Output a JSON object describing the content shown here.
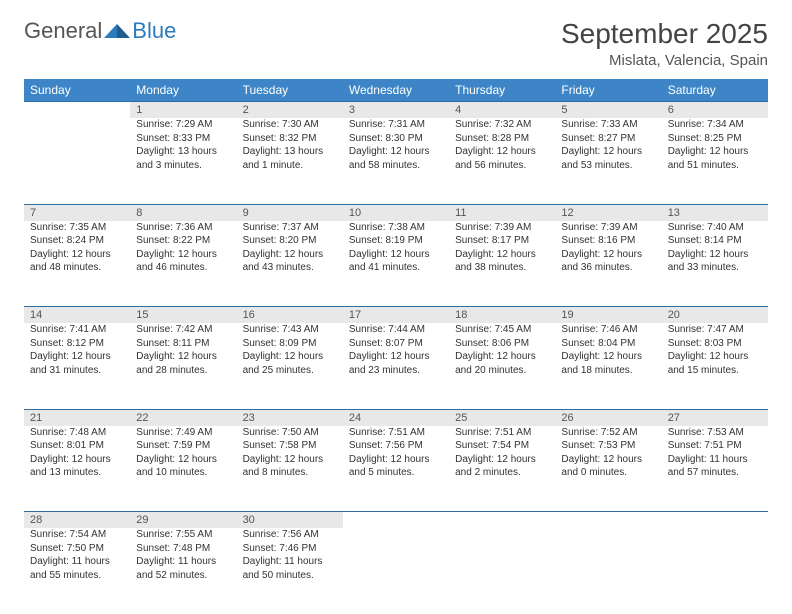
{
  "logo": {
    "text1": "General",
    "text2": "Blue"
  },
  "title": "September 2025",
  "location": "Mislata, Valencia, Spain",
  "colors": {
    "headerBar": "#3d85c6",
    "dayStrip": "#e8e8e8",
    "rule": "#2e6da4"
  },
  "daysOfWeek": [
    "Sunday",
    "Monday",
    "Tuesday",
    "Wednesday",
    "Thursday",
    "Friday",
    "Saturday"
  ],
  "weeks": [
    [
      null,
      {
        "n": "1",
        "sr": "Sunrise: 7:29 AM",
        "ss": "Sunset: 8:33 PM",
        "d1": "Daylight: 13 hours",
        "d2": "and 3 minutes."
      },
      {
        "n": "2",
        "sr": "Sunrise: 7:30 AM",
        "ss": "Sunset: 8:32 PM",
        "d1": "Daylight: 13 hours",
        "d2": "and 1 minute."
      },
      {
        "n": "3",
        "sr": "Sunrise: 7:31 AM",
        "ss": "Sunset: 8:30 PM",
        "d1": "Daylight: 12 hours",
        "d2": "and 58 minutes."
      },
      {
        "n": "4",
        "sr": "Sunrise: 7:32 AM",
        "ss": "Sunset: 8:28 PM",
        "d1": "Daylight: 12 hours",
        "d2": "and 56 minutes."
      },
      {
        "n": "5",
        "sr": "Sunrise: 7:33 AM",
        "ss": "Sunset: 8:27 PM",
        "d1": "Daylight: 12 hours",
        "d2": "and 53 minutes."
      },
      {
        "n": "6",
        "sr": "Sunrise: 7:34 AM",
        "ss": "Sunset: 8:25 PM",
        "d1": "Daylight: 12 hours",
        "d2": "and 51 minutes."
      }
    ],
    [
      {
        "n": "7",
        "sr": "Sunrise: 7:35 AM",
        "ss": "Sunset: 8:24 PM",
        "d1": "Daylight: 12 hours",
        "d2": "and 48 minutes."
      },
      {
        "n": "8",
        "sr": "Sunrise: 7:36 AM",
        "ss": "Sunset: 8:22 PM",
        "d1": "Daylight: 12 hours",
        "d2": "and 46 minutes."
      },
      {
        "n": "9",
        "sr": "Sunrise: 7:37 AM",
        "ss": "Sunset: 8:20 PM",
        "d1": "Daylight: 12 hours",
        "d2": "and 43 minutes."
      },
      {
        "n": "10",
        "sr": "Sunrise: 7:38 AM",
        "ss": "Sunset: 8:19 PM",
        "d1": "Daylight: 12 hours",
        "d2": "and 41 minutes."
      },
      {
        "n": "11",
        "sr": "Sunrise: 7:39 AM",
        "ss": "Sunset: 8:17 PM",
        "d1": "Daylight: 12 hours",
        "d2": "and 38 minutes."
      },
      {
        "n": "12",
        "sr": "Sunrise: 7:39 AM",
        "ss": "Sunset: 8:16 PM",
        "d1": "Daylight: 12 hours",
        "d2": "and 36 minutes."
      },
      {
        "n": "13",
        "sr": "Sunrise: 7:40 AM",
        "ss": "Sunset: 8:14 PM",
        "d1": "Daylight: 12 hours",
        "d2": "and 33 minutes."
      }
    ],
    [
      {
        "n": "14",
        "sr": "Sunrise: 7:41 AM",
        "ss": "Sunset: 8:12 PM",
        "d1": "Daylight: 12 hours",
        "d2": "and 31 minutes."
      },
      {
        "n": "15",
        "sr": "Sunrise: 7:42 AM",
        "ss": "Sunset: 8:11 PM",
        "d1": "Daylight: 12 hours",
        "d2": "and 28 minutes."
      },
      {
        "n": "16",
        "sr": "Sunrise: 7:43 AM",
        "ss": "Sunset: 8:09 PM",
        "d1": "Daylight: 12 hours",
        "d2": "and 25 minutes."
      },
      {
        "n": "17",
        "sr": "Sunrise: 7:44 AM",
        "ss": "Sunset: 8:07 PM",
        "d1": "Daylight: 12 hours",
        "d2": "and 23 minutes."
      },
      {
        "n": "18",
        "sr": "Sunrise: 7:45 AM",
        "ss": "Sunset: 8:06 PM",
        "d1": "Daylight: 12 hours",
        "d2": "and 20 minutes."
      },
      {
        "n": "19",
        "sr": "Sunrise: 7:46 AM",
        "ss": "Sunset: 8:04 PM",
        "d1": "Daylight: 12 hours",
        "d2": "and 18 minutes."
      },
      {
        "n": "20",
        "sr": "Sunrise: 7:47 AM",
        "ss": "Sunset: 8:03 PM",
        "d1": "Daylight: 12 hours",
        "d2": "and 15 minutes."
      }
    ],
    [
      {
        "n": "21",
        "sr": "Sunrise: 7:48 AM",
        "ss": "Sunset: 8:01 PM",
        "d1": "Daylight: 12 hours",
        "d2": "and 13 minutes."
      },
      {
        "n": "22",
        "sr": "Sunrise: 7:49 AM",
        "ss": "Sunset: 7:59 PM",
        "d1": "Daylight: 12 hours",
        "d2": "and 10 minutes."
      },
      {
        "n": "23",
        "sr": "Sunrise: 7:50 AM",
        "ss": "Sunset: 7:58 PM",
        "d1": "Daylight: 12 hours",
        "d2": "and 8 minutes."
      },
      {
        "n": "24",
        "sr": "Sunrise: 7:51 AM",
        "ss": "Sunset: 7:56 PM",
        "d1": "Daylight: 12 hours",
        "d2": "and 5 minutes."
      },
      {
        "n": "25",
        "sr": "Sunrise: 7:51 AM",
        "ss": "Sunset: 7:54 PM",
        "d1": "Daylight: 12 hours",
        "d2": "and 2 minutes."
      },
      {
        "n": "26",
        "sr": "Sunrise: 7:52 AM",
        "ss": "Sunset: 7:53 PM",
        "d1": "Daylight: 12 hours",
        "d2": "and 0 minutes."
      },
      {
        "n": "27",
        "sr": "Sunrise: 7:53 AM",
        "ss": "Sunset: 7:51 PM",
        "d1": "Daylight: 11 hours",
        "d2": "and 57 minutes."
      }
    ],
    [
      {
        "n": "28",
        "sr": "Sunrise: 7:54 AM",
        "ss": "Sunset: 7:50 PM",
        "d1": "Daylight: 11 hours",
        "d2": "and 55 minutes."
      },
      {
        "n": "29",
        "sr": "Sunrise: 7:55 AM",
        "ss": "Sunset: 7:48 PM",
        "d1": "Daylight: 11 hours",
        "d2": "and 52 minutes."
      },
      {
        "n": "30",
        "sr": "Sunrise: 7:56 AM",
        "ss": "Sunset: 7:46 PM",
        "d1": "Daylight: 11 hours",
        "d2": "and 50 minutes."
      },
      null,
      null,
      null,
      null
    ]
  ]
}
